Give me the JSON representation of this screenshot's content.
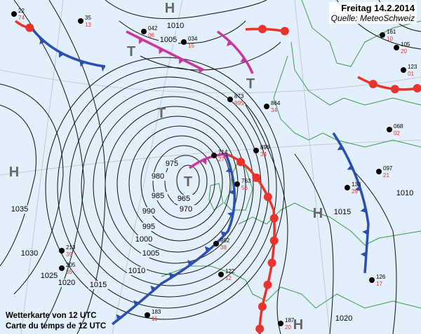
{
  "header": {
    "date": "Freitag 14.2.2014",
    "source": "Quelle: MeteoSchweiz"
  },
  "caption": {
    "line1": "Wetterkarte von 12 UTC",
    "line2": "Carte du temps de 12 UTC"
  },
  "colors": {
    "sea": "#e3effa",
    "coast": "#3a9a4a",
    "isobar": "#111111",
    "cold_front": "#2a4fb0",
    "warm_front": "#e8342a",
    "occlusion": "#c9359a",
    "pressure_system": "#666666",
    "station_red": "#e8342a"
  },
  "pressure_systems": [
    {
      "label": "H",
      "type": "high"
    },
    {
      "label": "H",
      "type": "high"
    },
    {
      "label": "H",
      "type": "high"
    },
    {
      "label": "H",
      "type": "high"
    },
    {
      "label": "T",
      "type": "low"
    },
    {
      "label": "T",
      "type": "low"
    },
    {
      "label": "T",
      "type": "low"
    },
    {
      "label": "T",
      "type": "low"
    }
  ],
  "isobar_labels": [
    "1010",
    "1005",
    "975",
    "980",
    "985",
    "990",
    "995",
    "1000",
    "1005",
    "1010",
    "1015",
    "1020",
    "1025",
    "1030",
    "1035",
    "965",
    "970",
    "1015",
    "1020",
    "1010"
  ],
  "stations": [
    {
      "black": "22",
      "red": "74"
    },
    {
      "black": "35",
      "red": "13"
    },
    {
      "black": "042",
      "red": "06"
    },
    {
      "black": "034",
      "red": "15"
    },
    {
      "black": "873",
      "red": "995"
    },
    {
      "black": "864",
      "red": "34"
    },
    {
      "black": "714",
      "red": "27"
    },
    {
      "black": "896",
      "red": "34"
    },
    {
      "black": "763",
      "red": "56"
    },
    {
      "black": "992",
      "red": "38"
    },
    {
      "black": "213",
      "red": "39"
    },
    {
      "black": "205",
      "red": "35"
    },
    {
      "black": "122",
      "red": "12"
    },
    {
      "black": "183",
      "red": "11"
    },
    {
      "black": "187",
      "red": "20"
    },
    {
      "black": "161",
      "red": "10"
    },
    {
      "black": "123",
      "red": "01"
    },
    {
      "black": "068",
      "red": "02"
    },
    {
      "black": "097",
      "red": "21"
    },
    {
      "black": "133",
      "red": "29"
    },
    {
      "black": "126",
      "red": "17"
    },
    {
      "black": "105",
      "red": "20"
    }
  ]
}
